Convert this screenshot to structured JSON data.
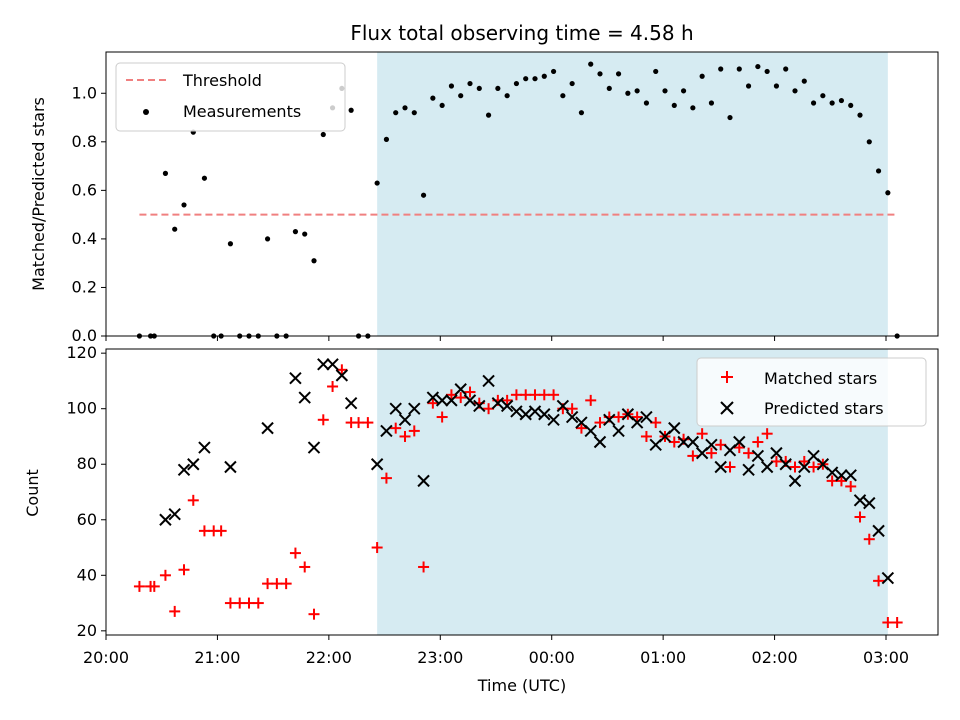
{
  "chart_data": [
    {
      "type": "scatter",
      "title": "Flux total observing time = 4.58 h",
      "xlabel": "",
      "ylabel": "Matched/Predicted stars",
      "xlim": [
        "20:00",
        "03:28"
      ],
      "ylim": [
        0,
        1.17
      ],
      "yticks": [
        "0.0",
        "0.2",
        "0.4",
        "0.6",
        "0.8",
        "1.0"
      ],
      "shaded_region": {
        "start": "22:26",
        "end": "03:01",
        "color": "#add8e6"
      },
      "legend": {
        "placement": "upper-left",
        "entries": [
          "Threshold",
          "Measurements"
        ]
      },
      "threshold": {
        "name": "Threshold",
        "value": 0.5,
        "start": "20:18",
        "end": "03:06",
        "color": "#f08080"
      },
      "series": [
        {
          "name": "Measurements",
          "color": "#000000",
          "points": [
            [
              "20:18",
              0.0
            ],
            [
              "20:24",
              0.0
            ],
            [
              "20:26",
              0.0
            ],
            [
              "20:32",
              0.67
            ],
            [
              "20:37",
              0.44
            ],
            [
              "20:42",
              0.54
            ],
            [
              "20:47",
              0.84
            ],
            [
              "20:53",
              0.65
            ],
            [
              "20:58",
              0.0
            ],
            [
              "21:02",
              0.0
            ],
            [
              "21:07",
              0.38
            ],
            [
              "21:12",
              0.0
            ],
            [
              "21:17",
              0.0
            ],
            [
              "21:22",
              0.0
            ],
            [
              "21:27",
              0.4
            ],
            [
              "21:32",
              0.0
            ],
            [
              "21:37",
              0.0
            ],
            [
              "21:42",
              0.43
            ],
            [
              "21:47",
              0.42
            ],
            [
              "21:52",
              0.31
            ],
            [
              "21:57",
              0.83
            ],
            [
              "22:02",
              0.94
            ],
            [
              "22:07",
              1.02
            ],
            [
              "22:12",
              0.93
            ],
            [
              "22:16",
              0.0
            ],
            [
              "22:21",
              0.0
            ],
            [
              "22:26",
              0.63
            ],
            [
              "22:31",
              0.81
            ],
            [
              "22:36",
              0.92
            ],
            [
              "22:41",
              0.94
            ],
            [
              "22:46",
              0.92
            ],
            [
              "22:51",
              0.58
            ],
            [
              "22:56",
              0.98
            ],
            [
              "23:01",
              0.95
            ],
            [
              "23:06",
              1.03
            ],
            [
              "23:11",
              0.99
            ],
            [
              "23:16",
              1.04
            ],
            [
              "23:21",
              1.02
            ],
            [
              "23:26",
              0.91
            ],
            [
              "23:31",
              1.02
            ],
            [
              "23:36",
              0.99
            ],
            [
              "23:41",
              1.04
            ],
            [
              "23:46",
              1.06
            ],
            [
              "23:51",
              1.06
            ],
            [
              "23:56",
              1.07
            ],
            [
              "00:01",
              1.09
            ],
            [
              "00:06",
              0.99
            ],
            [
              "00:11",
              1.04
            ],
            [
              "00:16",
              0.92
            ],
            [
              "00:21",
              1.12
            ],
            [
              "00:26",
              1.08
            ],
            [
              "00:31",
              1.02
            ],
            [
              "00:36",
              1.08
            ],
            [
              "00:41",
              1.0
            ],
            [
              "00:46",
              1.01
            ],
            [
              "00:51",
              0.96
            ],
            [
              "00:56",
              1.09
            ],
            [
              "01:01",
              1.01
            ],
            [
              "01:06",
              0.95
            ],
            [
              "01:11",
              1.01
            ],
            [
              "01:16",
              0.94
            ],
            [
              "01:21",
              1.07
            ],
            [
              "01:26",
              0.96
            ],
            [
              "01:31",
              1.1
            ],
            [
              "01:36",
              0.9
            ],
            [
              "01:41",
              1.1
            ],
            [
              "01:46",
              1.03
            ],
            [
              "01:51",
              1.11
            ],
            [
              "01:56",
              1.09
            ],
            [
              "02:01",
              1.03
            ],
            [
              "02:06",
              1.1
            ],
            [
              "02:11",
              1.01
            ],
            [
              "02:16",
              1.05
            ],
            [
              "02:21",
              0.96
            ],
            [
              "02:26",
              0.99
            ],
            [
              "02:31",
              0.96
            ],
            [
              "02:36",
              0.97
            ],
            [
              "02:41",
              0.95
            ],
            [
              "02:46",
              0.91
            ],
            [
              "02:51",
              0.8
            ],
            [
              "02:56",
              0.68
            ],
            [
              "03:01",
              0.59
            ],
            [
              "03:06",
              0.0
            ]
          ]
        }
      ]
    },
    {
      "type": "scatter",
      "title": "",
      "xlabel": "Time (UTC)",
      "ylabel": "Count",
      "xlim": [
        "20:00",
        "03:28"
      ],
      "ylim": [
        18.5,
        121.5
      ],
      "yticks": [
        "20",
        "40",
        "60",
        "80",
        "100",
        "120"
      ],
      "xticks": [
        "20:00",
        "21:00",
        "22:00",
        "23:00",
        "00:00",
        "01:00",
        "02:00",
        "03:00"
      ],
      "shaded_region": {
        "start": "22:26",
        "end": "03:01",
        "color": "#add8e6"
      },
      "legend": {
        "placement": "upper-right",
        "entries": [
          "Matched stars",
          "Predicted stars"
        ]
      },
      "series": [
        {
          "name": "Matched stars",
          "marker": "plus",
          "color": "#ff0000",
          "points": [
            [
              "20:18",
              36
            ],
            [
              "20:24",
              36
            ],
            [
              "20:26",
              36
            ],
            [
              "20:32",
              40
            ],
            [
              "20:37",
              27
            ],
            [
              "20:42",
              42
            ],
            [
              "20:47",
              67
            ],
            [
              "20:53",
              56
            ],
            [
              "20:58",
              56
            ],
            [
              "21:02",
              56
            ],
            [
              "21:07",
              30
            ],
            [
              "21:12",
              30
            ],
            [
              "21:17",
              30
            ],
            [
              "21:22",
              30
            ],
            [
              "21:27",
              37
            ],
            [
              "21:32",
              37
            ],
            [
              "21:37",
              37
            ],
            [
              "21:42",
              48
            ],
            [
              "21:47",
              43
            ],
            [
              "21:52",
              26
            ],
            [
              "21:57",
              96
            ],
            [
              "22:02",
              108
            ],
            [
              "22:07",
              114
            ],
            [
              "22:12",
              95
            ],
            [
              "22:16",
              95
            ],
            [
              "22:21",
              95
            ],
            [
              "22:26",
              50
            ],
            [
              "22:31",
              75
            ],
            [
              "22:36",
              93
            ],
            [
              "22:41",
              90
            ],
            [
              "22:46",
              92
            ],
            [
              "22:51",
              43
            ],
            [
              "22:56",
              102
            ],
            [
              "23:01",
              97
            ],
            [
              "23:06",
              105
            ],
            [
              "23:11",
              104
            ],
            [
              "23:16",
              106
            ],
            [
              "23:21",
              102
            ],
            [
              "23:26",
              100
            ],
            [
              "23:31",
              103
            ],
            [
              "23:36",
              103
            ],
            [
              "23:41",
              105
            ],
            [
              "23:46",
              105
            ],
            [
              "23:51",
              105
            ],
            [
              "23:56",
              105
            ],
            [
              "00:01",
              105
            ],
            [
              "00:06",
              100
            ],
            [
              "00:11",
              100
            ],
            [
              "00:16",
              93
            ],
            [
              "00:21",
              103
            ],
            [
              "00:26",
              95
            ],
            [
              "00:31",
              97
            ],
            [
              "00:36",
              97
            ],
            [
              "00:41",
              98
            ],
            [
              "00:46",
              97
            ],
            [
              "00:51",
              90
            ],
            [
              "00:56",
              95
            ],
            [
              "01:01",
              90
            ],
            [
              "01:06",
              88
            ],
            [
              "01:11",
              89
            ],
            [
              "01:16",
              83
            ],
            [
              "01:21",
              91
            ],
            [
              "01:26",
              84
            ],
            [
              "01:31",
              87
            ],
            [
              "01:36",
              79
            ],
            [
              "01:41",
              86
            ],
            [
              "01:46",
              84
            ],
            [
              "01:51",
              88
            ],
            [
              "01:56",
              91
            ],
            [
              "02:01",
              81
            ],
            [
              "02:06",
              81
            ],
            [
              "02:11",
              79
            ],
            [
              "02:16",
              81
            ],
            [
              "02:21",
              79
            ],
            [
              "02:26",
              80
            ],
            [
              "02:31",
              74
            ],
            [
              "02:36",
              74
            ],
            [
              "02:41",
              72
            ],
            [
              "02:46",
              61
            ],
            [
              "02:51",
              53
            ],
            [
              "02:56",
              38
            ],
            [
              "03:01",
              23
            ],
            [
              "03:06",
              23
            ]
          ]
        },
        {
          "name": "Predicted stars",
          "marker": "x",
          "color": "#000000",
          "points": [
            [
              "20:32",
              60
            ],
            [
              "20:37",
              62
            ],
            [
              "20:42",
              78
            ],
            [
              "20:47",
              80
            ],
            [
              "20:53",
              86
            ],
            [
              "21:07",
              79
            ],
            [
              "21:27",
              93
            ],
            [
              "21:42",
              111
            ],
            [
              "21:47",
              104
            ],
            [
              "21:52",
              86
            ],
            [
              "21:57",
              116
            ],
            [
              "22:02",
              116
            ],
            [
              "22:07",
              112
            ],
            [
              "22:12",
              102
            ],
            [
              "22:26",
              80
            ],
            [
              "22:31",
              92
            ],
            [
              "22:36",
              100
            ],
            [
              "22:41",
              96
            ],
            [
              "22:46",
              100
            ],
            [
              "22:51",
              74
            ],
            [
              "22:56",
              104
            ],
            [
              "23:01",
              103
            ],
            [
              "23:06",
              103
            ],
            [
              "23:11",
              107
            ],
            [
              "23:16",
              103
            ],
            [
              "23:21",
              101
            ],
            [
              "23:26",
              110
            ],
            [
              "23:31",
              102
            ],
            [
              "23:36",
              101
            ],
            [
              "23:41",
              99
            ],
            [
              "23:46",
              98
            ],
            [
              "23:51",
              99
            ],
            [
              "23:56",
              98
            ],
            [
              "00:01",
              96
            ],
            [
              "00:06",
              101
            ],
            [
              "00:11",
              97
            ],
            [
              "00:16",
              95
            ],
            [
              "00:21",
              92
            ],
            [
              "00:26",
              88
            ],
            [
              "00:31",
              96
            ],
            [
              "00:36",
              92
            ],
            [
              "00:41",
              98
            ],
            [
              "00:46",
              95
            ],
            [
              "00:51",
              97
            ],
            [
              "00:56",
              87
            ],
            [
              "01:01",
              90
            ],
            [
              "01:06",
              93
            ],
            [
              "01:11",
              88
            ],
            [
              "01:16",
              88
            ],
            [
              "01:21",
              84
            ],
            [
              "01:26",
              87
            ],
            [
              "01:31",
              79
            ],
            [
              "01:36",
              85
            ],
            [
              "01:41",
              88
            ],
            [
              "01:46",
              78
            ],
            [
              "01:51",
              83
            ],
            [
              "01:56",
              79
            ],
            [
              "02:01",
              84
            ],
            [
              "02:06",
              80
            ],
            [
              "02:11",
              74
            ],
            [
              "02:16",
              79
            ],
            [
              "02:21",
              83
            ],
            [
              "02:26",
              80
            ],
            [
              "02:31",
              77
            ],
            [
              "02:36",
              76
            ],
            [
              "02:41",
              76
            ],
            [
              "02:46",
              67
            ],
            [
              "02:51",
              66
            ],
            [
              "02:56",
              56
            ],
            [
              "03:01",
              39
            ]
          ]
        }
      ]
    }
  ]
}
